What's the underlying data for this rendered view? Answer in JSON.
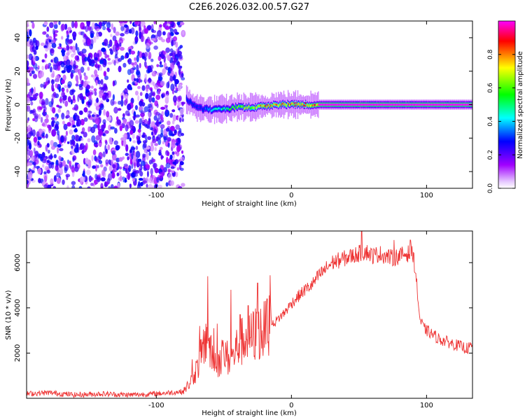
{
  "title": "C2E6.2026.032.00.57.G27",
  "chart_data": [
    {
      "type": "heatmap",
      "name": "spectrogram",
      "xlabel": "Height of straight line (km)",
      "ylabel": "Frequency (Hz)",
      "xlim": [
        -196,
        134
      ],
      "ylim": [
        -50,
        50
      ],
      "xticks": [
        -100,
        0,
        100
      ],
      "xtick_labels": [
        "-100",
        "0",
        "100"
      ],
      "yticks": [
        -40,
        -20,
        0,
        20,
        40
      ],
      "ytick_labels": [
        "-40",
        "-20",
        "0",
        "20",
        "40"
      ],
      "noise_region_x": [
        -196,
        -80
      ],
      "signal_track": {
        "x": [
          -78,
          -70,
          -60,
          -50,
          -40,
          -30,
          -20,
          -10,
          0,
          10,
          20,
          134
        ],
        "freq": [
          3,
          -2,
          -3,
          -2.5,
          -1.5,
          -1.5,
          -1,
          0,
          0,
          0,
          0,
          0
        ],
        "amplitude": [
          0.35,
          0.25,
          0.45,
          0.55,
          0.7,
          0.8,
          0.9,
          0.85,
          0.9,
          0.9,
          1.0,
          1.0
        ]
      }
    },
    {
      "type": "colorbar",
      "name": "amplitude-colorbar",
      "label": "Normalized spectral amplitude",
      "range": [
        0,
        1
      ],
      "ticks": [
        0.0,
        0.2,
        0.4,
        0.6,
        0.8
      ],
      "tick_labels": [
        "0.0",
        "0.2",
        "0.4",
        "0.6",
        "0.8"
      ],
      "colors": [
        "#ffffff",
        "#b000ff",
        "#0000ff",
        "#00ffff",
        "#00ff00",
        "#ffff00",
        "#ff0000",
        "#ff00ff"
      ]
    },
    {
      "type": "line",
      "name": "snr",
      "xlabel": "Height of straight line (km)",
      "ylabel": "SNR (10 * v/v)",
      "xlim": [
        -196,
        134
      ],
      "ylim": [
        0,
        7400
      ],
      "xticks": [
        -100,
        0,
        100
      ],
      "xtick_labels": [
        "-100",
        "0",
        "100"
      ],
      "yticks": [
        2000,
        4000,
        6000
      ],
      "ytick_labels": [
        "2000",
        "4000",
        "6000"
      ],
      "color": "#ee3333",
      "x": [
        -196,
        -180,
        -160,
        -140,
        -120,
        -100,
        -90,
        -80,
        -75,
        -70,
        -65,
        -62,
        -60,
        -55,
        -50,
        -45,
        -40,
        -35,
        -30,
        -25,
        -20,
        -15,
        -10,
        -5,
        0,
        5,
        10,
        15,
        20,
        25,
        30,
        35,
        40,
        45,
        50,
        55,
        60,
        65,
        70,
        75,
        80,
        85,
        90,
        92,
        95,
        98,
        100,
        105,
        110,
        115,
        120,
        125,
        130,
        134
      ],
      "y": [
        200,
        250,
        150,
        200,
        150,
        200,
        250,
        300,
        700,
        1300,
        2200,
        3000,
        2000,
        1500,
        2000,
        1600,
        2300,
        2600,
        2700,
        2900,
        3000,
        3200,
        3500,
        3800,
        4200,
        4500,
        4800,
        5000,
        5400,
        5700,
        6000,
        6100,
        6200,
        6300,
        6400,
        6500,
        6300,
        6400,
        6300,
        6200,
        6300,
        6400,
        6400,
        5500,
        3500,
        3100,
        3000,
        2800,
        2600,
        2500,
        2400,
        2300,
        2200,
        2300
      ],
      "spikes": [
        {
          "x": -68,
          "y": 3200
        },
        {
          "x": -62,
          "y": 5400
        },
        {
          "x": -55,
          "y": 3300
        },
        {
          "x": -45,
          "y": 4800
        },
        {
          "x": -38,
          "y": 3700
        },
        {
          "x": -32,
          "y": 4100
        },
        {
          "x": -25,
          "y": 5100
        },
        {
          "x": -18,
          "y": 4400
        },
        {
          "x": 52,
          "y": 7400
        },
        {
          "x": 76,
          "y": 7000
        },
        {
          "x": 88,
          "y": 7000
        }
      ]
    }
  ]
}
